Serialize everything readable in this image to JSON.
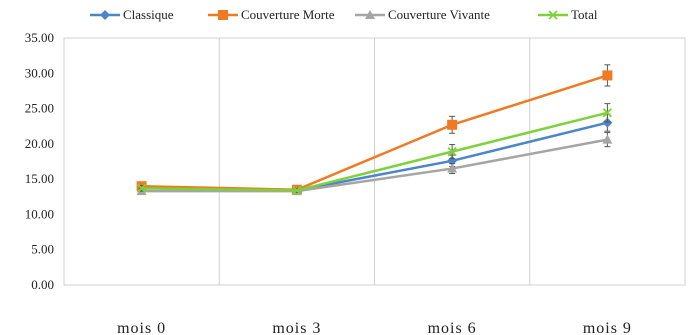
{
  "chart_data": {
    "type": "line",
    "title": "",
    "xlabel": "",
    "ylabel": "",
    "categories": [
      "mois 0",
      "mois 3",
      "mois 6",
      "mois 9"
    ],
    "ylim": [
      0,
      35
    ],
    "y_ticks": [
      "0.00",
      "5.00",
      "10.00",
      "15.00",
      "20.00",
      "25.00",
      "30.00",
      "35.00"
    ],
    "grid": "vertical",
    "legend_position": "top",
    "series": [
      {
        "name": "Classique",
        "color": "#4a86c8",
        "marker": "diamond",
        "values": [
          13.8,
          13.4,
          17.6,
          23.0
        ],
        "errors": [
          0.4,
          0.3,
          0.8,
          1.2
        ]
      },
      {
        "name": "Couverture Morte",
        "color": "#f07a24",
        "marker": "square",
        "values": [
          14.0,
          13.5,
          22.7,
          29.7
        ],
        "errors": [
          0.4,
          0.3,
          1.2,
          1.5
        ]
      },
      {
        "name": "Couverture Vivante",
        "color": "#a5a5a5",
        "marker": "triangle",
        "values": [
          13.3,
          13.3,
          16.5,
          20.6
        ],
        "errors": [
          0.4,
          0.3,
          0.7,
          1.0
        ]
      },
      {
        "name": "Total",
        "color": "#7dd23a",
        "marker": "x",
        "values": [
          13.7,
          13.4,
          18.9,
          24.4
        ],
        "errors": [
          0.4,
          0.3,
          1.0,
          1.3
        ]
      }
    ]
  }
}
